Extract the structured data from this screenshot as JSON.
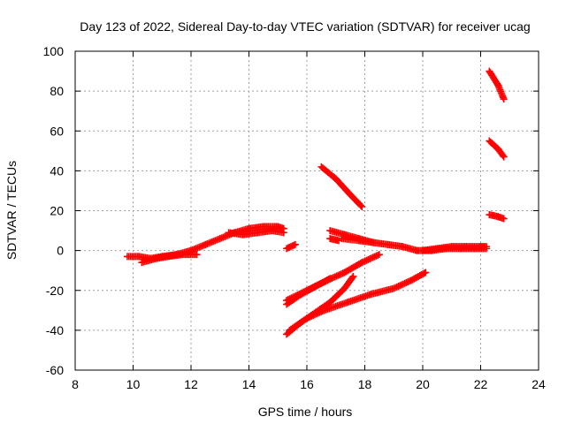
{
  "chart_data": {
    "type": "scatter",
    "title": "Day 123 of 2022, Sidereal Day-to-day VTEC variation (SDTVAR) for receiver ucag",
    "xlabel": "GPS time / hours",
    "ylabel": "SDTVAR / TECUs",
    "xlim": [
      8,
      24
    ],
    "ylim": [
      -60,
      100
    ],
    "xticks": [
      8,
      10,
      12,
      14,
      16,
      18,
      20,
      22,
      24
    ],
    "yticks": [
      -60,
      -40,
      -20,
      0,
      20,
      40,
      60,
      80,
      100
    ],
    "grid": true,
    "marker": "plus",
    "color": "#ff0000",
    "series": [
      {
        "name": "track-1",
        "points": [
          [
            9.8,
            -3
          ],
          [
            10.2,
            -3
          ],
          [
            10.6,
            -4
          ],
          [
            11.0,
            -3
          ],
          [
            11.5,
            -2
          ],
          [
            12.0,
            0
          ],
          [
            12.5,
            3
          ],
          [
            13.0,
            6
          ],
          [
            13.5,
            9
          ],
          [
            14.0,
            11
          ],
          [
            14.5,
            12
          ],
          [
            15.0,
            12
          ],
          [
            15.2,
            11
          ]
        ]
      },
      {
        "name": "track-2",
        "points": [
          [
            10.3,
            -6
          ],
          [
            10.8,
            -4
          ],
          [
            11.2,
            -3
          ],
          [
            11.7,
            -2
          ],
          [
            12.2,
            -2
          ]
        ]
      },
      {
        "name": "track-3",
        "points": [
          [
            13.3,
            9
          ],
          [
            13.8,
            8
          ],
          [
            14.3,
            9
          ],
          [
            14.8,
            10
          ],
          [
            15.2,
            9
          ]
        ]
      },
      {
        "name": "track-4",
        "points": [
          [
            15.3,
            1
          ],
          [
            15.6,
            3
          ]
        ]
      },
      {
        "name": "track-5",
        "points": [
          [
            16.5,
            42
          ],
          [
            17.0,
            36
          ],
          [
            17.5,
            28
          ],
          [
            17.9,
            22
          ]
        ]
      },
      {
        "name": "track-6",
        "points": [
          [
            16.8,
            10
          ],
          [
            17.3,
            8
          ],
          [
            17.8,
            6
          ],
          [
            18.3,
            4
          ],
          [
            18.8,
            3
          ],
          [
            19.3,
            2
          ],
          [
            19.8,
            0
          ],
          [
            20.3,
            0
          ],
          [
            20.8,
            1
          ],
          [
            21.3,
            1
          ],
          [
            21.8,
            1
          ],
          [
            22.2,
            1
          ]
        ]
      },
      {
        "name": "track-7",
        "points": [
          [
            16.8,
            6
          ],
          [
            17.1,
            5
          ]
        ]
      },
      {
        "name": "track-8",
        "points": [
          [
            17.2,
            6
          ],
          [
            17.8,
            5
          ],
          [
            18.3,
            4
          ]
        ]
      },
      {
        "name": "track-9",
        "points": [
          [
            20.0,
            0
          ],
          [
            20.5,
            1
          ],
          [
            21.0,
            2
          ],
          [
            21.5,
            2
          ],
          [
            22.0,
            2
          ],
          [
            22.2,
            2
          ]
        ]
      },
      {
        "name": "track-10",
        "points": [
          [
            15.3,
            -27
          ],
          [
            15.8,
            -22
          ],
          [
            16.3,
            -18
          ],
          [
            16.8,
            -14
          ]
        ]
      },
      {
        "name": "track-11",
        "points": [
          [
            15.3,
            -25
          ],
          [
            16.0,
            -20
          ],
          [
            16.7,
            -15
          ],
          [
            17.3,
            -11
          ],
          [
            17.9,
            -6
          ],
          [
            18.5,
            -2
          ]
        ]
      },
      {
        "name": "track-12",
        "points": [
          [
            15.3,
            -42
          ],
          [
            15.8,
            -36
          ],
          [
            16.3,
            -31
          ],
          [
            16.8,
            -26
          ],
          [
            17.3,
            -19
          ],
          [
            17.6,
            -13
          ]
        ]
      },
      {
        "name": "track-13",
        "points": [
          [
            15.4,
            -40
          ],
          [
            16.0,
            -34
          ],
          [
            16.6,
            -30
          ],
          [
            17.4,
            -26
          ],
          [
            18.2,
            -22
          ],
          [
            19.0,
            -19
          ],
          [
            19.6,
            -15
          ],
          [
            20.1,
            -11
          ]
        ]
      },
      {
        "name": "track-14",
        "points": [
          [
            22.3,
            90
          ],
          [
            22.6,
            83
          ],
          [
            22.8,
            76
          ]
        ]
      },
      {
        "name": "track-15",
        "points": [
          [
            22.3,
            55
          ],
          [
            22.6,
            51
          ],
          [
            22.8,
            47
          ]
        ]
      },
      {
        "name": "track-16",
        "points": [
          [
            22.3,
            18
          ],
          [
            22.6,
            17
          ],
          [
            22.8,
            16
          ]
        ]
      }
    ]
  }
}
